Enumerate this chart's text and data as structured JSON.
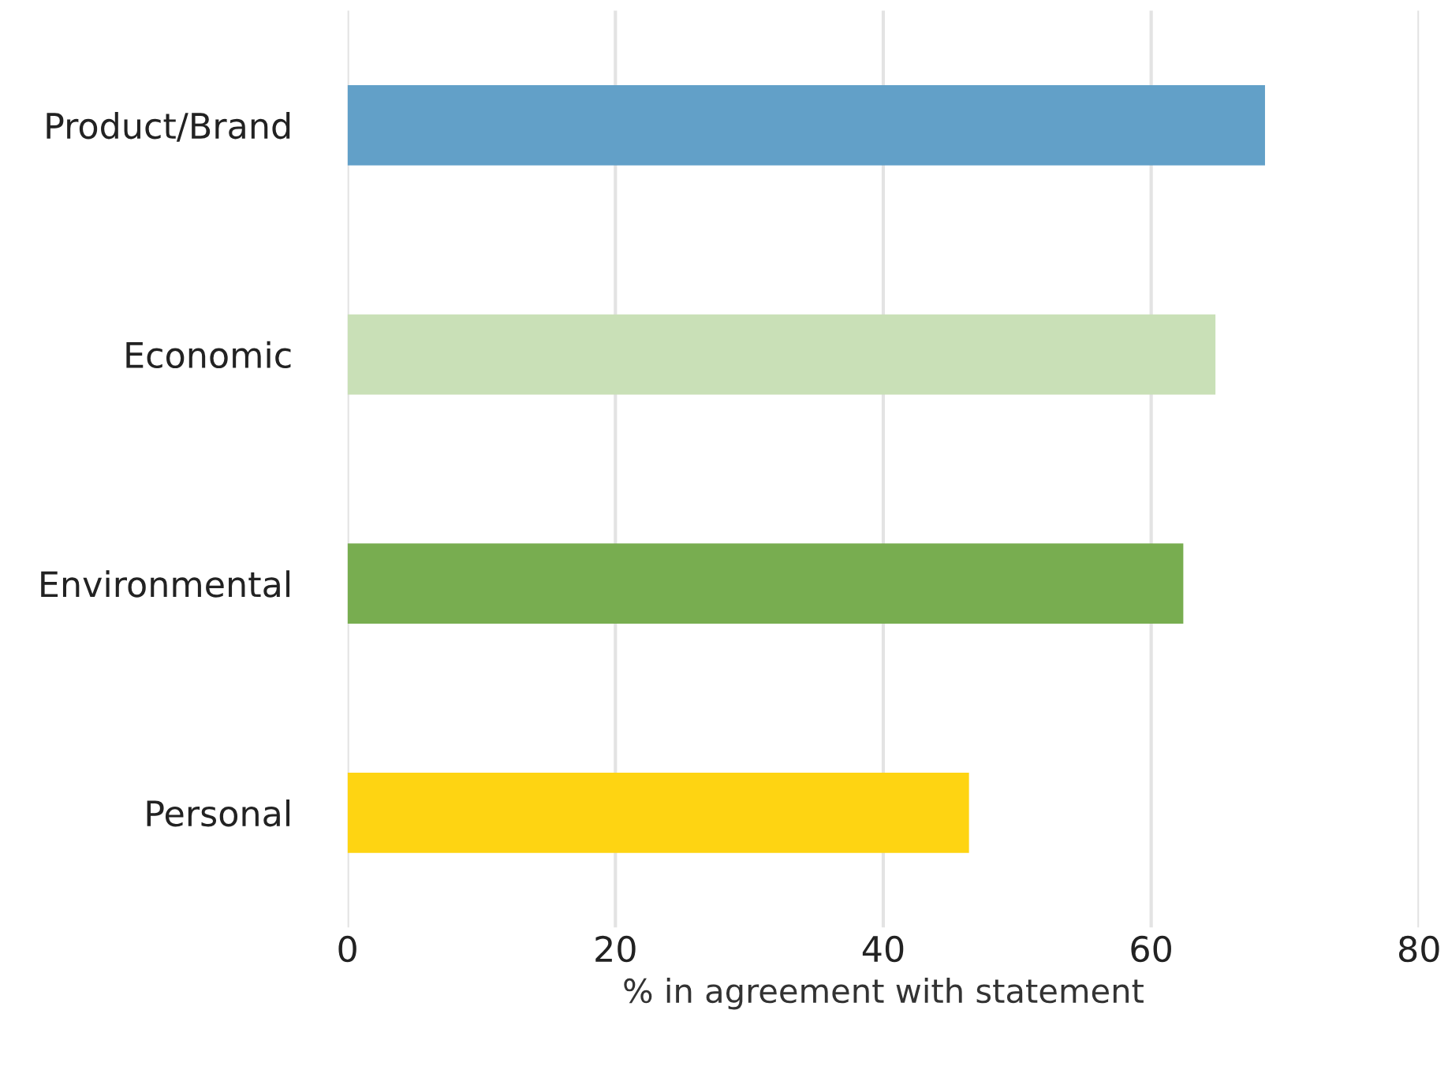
{
  "chart_data": {
    "type": "bar",
    "orientation": "horizontal",
    "xlabel": "% in agreement with statement",
    "categories": [
      "Product/Brand",
      "Economic",
      "Environmental",
      "Personal"
    ],
    "values": [
      68.5,
      64.8,
      62.4,
      46.4
    ],
    "colors": [
      "#62a0c8",
      "#c9e0b7",
      "#78ad50",
      "#fed412"
    ],
    "xlim": [
      0,
      80
    ],
    "xticks": [
      0,
      20,
      40,
      60,
      80
    ],
    "grid": "x"
  }
}
